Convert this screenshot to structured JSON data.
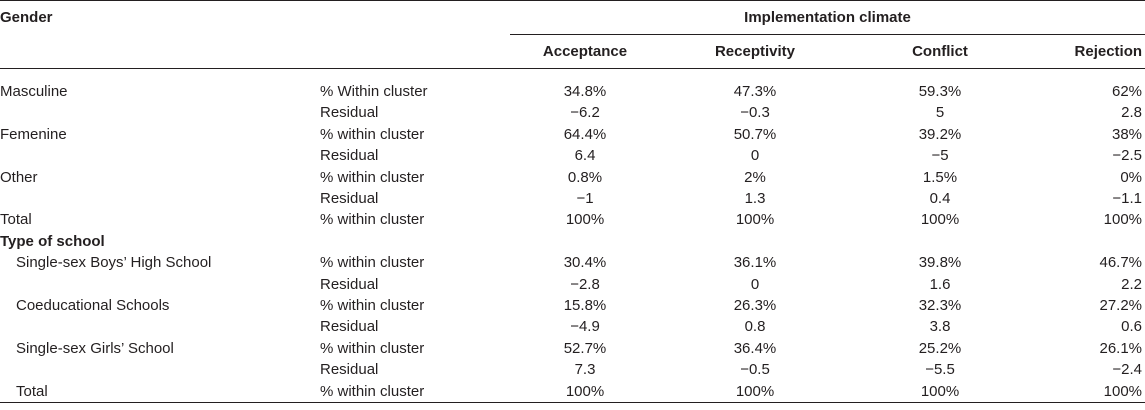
{
  "header": {
    "gender": "Gender",
    "group": "Implementation climate",
    "cols": [
      "Acceptance",
      "Receptivity",
      "Conflict",
      "Rejection"
    ]
  },
  "rows": [
    {
      "label": "Masculine",
      "metric": "% Within cluster",
      "vals": [
        "34.8%",
        "47.3%",
        "59.3%",
        "62%"
      ]
    },
    {
      "label": "",
      "metric": "Residual",
      "vals": [
        "−6.2",
        "−0.3",
        "5",
        "2.8"
      ]
    },
    {
      "label": "Femenine",
      "metric": "% within cluster",
      "vals": [
        "64.4%",
        "50.7%",
        "39.2%",
        "38%"
      ]
    },
    {
      "label": "",
      "metric": "Residual",
      "vals": [
        "6.4",
        "0",
        "−5",
        "−2.5"
      ]
    },
    {
      "label": "Other",
      "metric": "% within cluster",
      "vals": [
        "0.8%",
        "2%",
        "1.5%",
        "0%"
      ]
    },
    {
      "label": "",
      "metric": "Residual",
      "vals": [
        "−1",
        "1.3",
        "0.4",
        "−1.1"
      ]
    },
    {
      "label": "Total",
      "metric": "% within cluster",
      "vals": [
        "100%",
        "100%",
        "100%",
        "100%"
      ]
    },
    {
      "label": "Type of school",
      "metric": "",
      "vals": [
        "",
        "",
        "",
        ""
      ]
    },
    {
      "label": "Single-sex Boys’ High School",
      "metric": "% within cluster",
      "vals": [
        "30.4%",
        "36.1%",
        "39.8%",
        "46.7%"
      ]
    },
    {
      "label": "",
      "metric": "Residual",
      "vals": [
        "−2.8",
        "0",
        "1.6",
        "2.2"
      ]
    },
    {
      "label": "Coeducational Schools",
      "metric": "% within cluster",
      "vals": [
        "15.8%",
        "26.3%",
        "32.3%",
        "27.2%"
      ]
    },
    {
      "label": "",
      "metric": "Residual",
      "vals": [
        "−4.9",
        "0.8",
        "3.8",
        "0.6"
      ]
    },
    {
      "label": "Single-sex Girls’ School",
      "metric": "% within cluster",
      "vals": [
        "52.7%",
        "36.4%",
        "25.2%",
        "26.1%"
      ]
    },
    {
      "label": "",
      "metric": "Residual",
      "vals": [
        "7.3",
        "−0.5",
        "−5.5",
        "−2.4"
      ]
    },
    {
      "label": "Total",
      "metric": "% within cluster",
      "vals": [
        "100%",
        "100%",
        "100%",
        "100%"
      ]
    }
  ]
}
